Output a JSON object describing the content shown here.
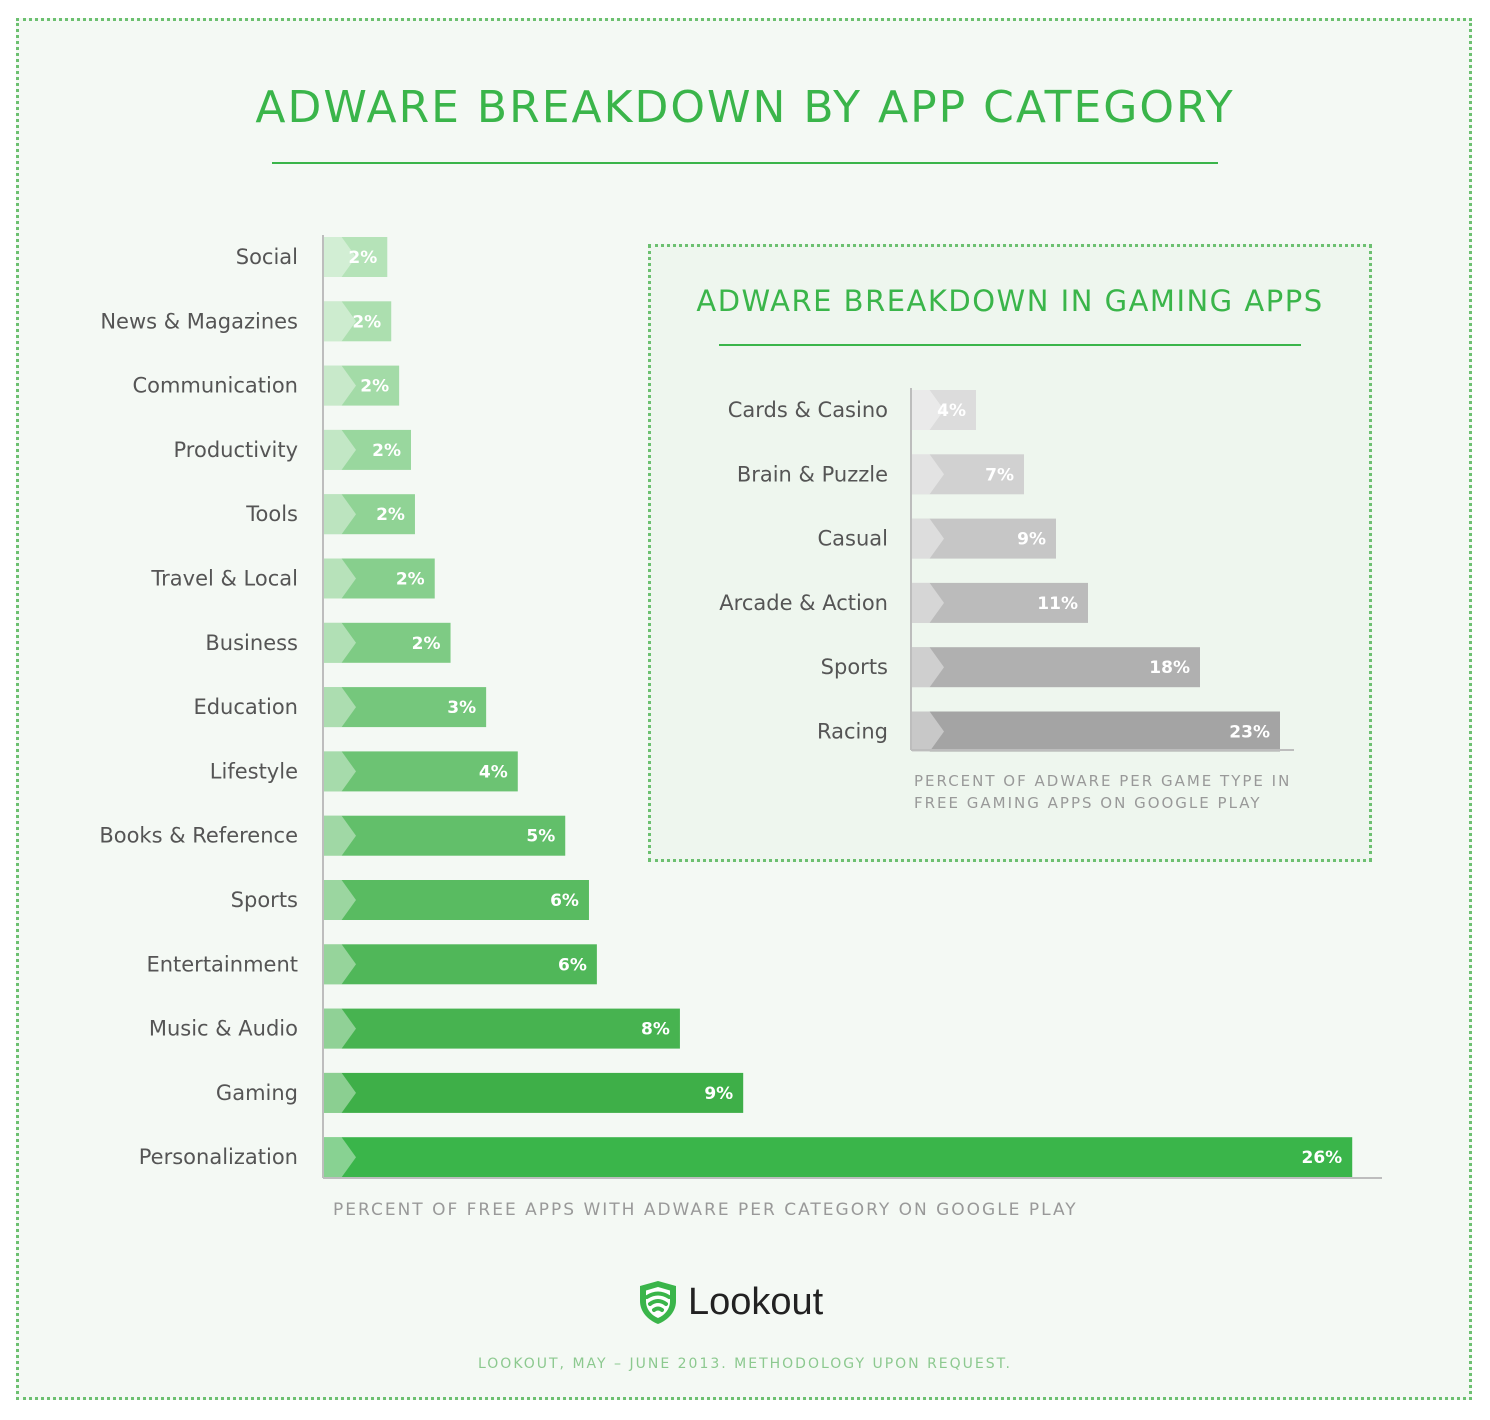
{
  "title": "ADWARE BREAKDOWN BY APP CATEGORY",
  "inset_title": "ADWARE BREAKDOWN IN GAMING APPS",
  "chart_data": [
    {
      "type": "bar",
      "orientation": "horizontal",
      "title": "ADWARE BREAKDOWN BY APP CATEGORY",
      "caption": "PERCENT OF FREE APPS WITH ADWARE PER CATEGORY ON GOOGLE PLAY",
      "categories": [
        "Social",
        "News & Magazines",
        "Communication",
        "Productivity",
        "Tools",
        "Travel & Local",
        "Business",
        "Education",
        "Lifestyle",
        "Books & Reference",
        "Sports",
        "Entertainment",
        "Music & Audio",
        "Gaming",
        "Personalization"
      ],
      "values": [
        2,
        2,
        2,
        2,
        2,
        2,
        2,
        3,
        4,
        5,
        6,
        6,
        8,
        9,
        26
      ],
      "bar_lengths": [
        1.6,
        1.7,
        1.9,
        2.2,
        2.3,
        2.8,
        3.2,
        4.1,
        4.9,
        6.1,
        6.7,
        6.9,
        9.0,
        10.6,
        26.0
      ],
      "labels": [
        "2%",
        "2%",
        "2%",
        "2%",
        "2%",
        "2%",
        "2%",
        "3%",
        "4%",
        "5%",
        "6%",
        "6%",
        "8%",
        "9%",
        "26%"
      ],
      "xlim": [
        0,
        26.5
      ],
      "colors": [
        "#b5e3b8",
        "#acdfaf",
        "#a3dba7",
        "#99d79e",
        "#90d395",
        "#87cf8d",
        "#7ecb84",
        "#75c77c",
        "#6cc373",
        "#62bf6a",
        "#59bb61",
        "#50b759",
        "#47b350",
        "#3eaf48",
        "#3ab54a"
      ]
    },
    {
      "type": "bar",
      "orientation": "horizontal",
      "title": "ADWARE BREAKDOWN IN GAMING APPS",
      "caption": [
        "PERCENT OF ADWARE PER GAME TYPE IN",
        "FREE GAMING APPS ON GOOGLE PLAY"
      ],
      "categories": [
        "Cards & Casino",
        "Brain & Puzzle",
        "Casual",
        "Arcade & Action",
        "Sports",
        "Racing"
      ],
      "values": [
        4,
        7,
        9,
        11,
        18,
        23
      ],
      "labels": [
        "4%",
        "7%",
        "9%",
        "11%",
        "18%",
        "23%"
      ],
      "xlim": [
        0,
        23
      ],
      "colors": [
        "#dcdcdc",
        "#d1d1d1",
        "#c6c6c6",
        "#bbbbbb",
        "#b0b0b0",
        "#a4a4a4"
      ]
    }
  ],
  "brand": {
    "name": "Lookout",
    "color": "#3ab54a",
    "icon": "shield-wifi-icon"
  },
  "source": "LOOKOUT, MAY – JUNE 2013. METHODOLOGY UPON REQUEST."
}
